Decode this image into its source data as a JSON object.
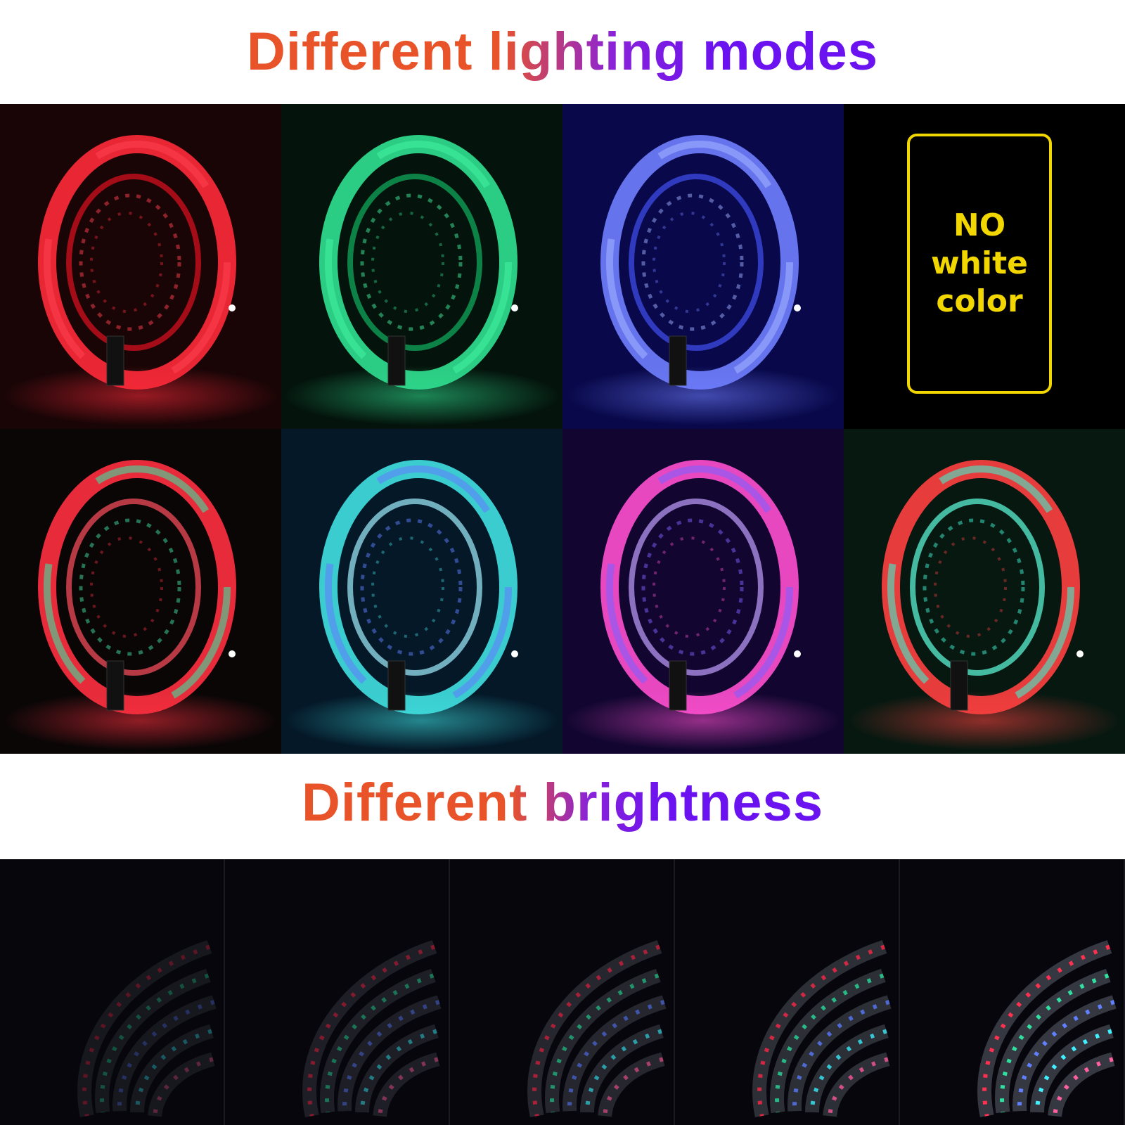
{
  "headings": {
    "modes": "Different lighting modes",
    "brightness": "Different brightness"
  },
  "gradient_colors": [
    "#e8532a",
    "#6a12f0"
  ],
  "modes_grid": [
    {
      "name": "red",
      "bg": "#1a0506",
      "colors": [
        "#ff2a3a",
        "#ff4050",
        "#e01020"
      ]
    },
    {
      "name": "green",
      "bg": "#04140c",
      "colors": [
        "#30e090",
        "#40f0a0",
        "#10b060"
      ]
    },
    {
      "name": "blue",
      "bg": "#08084a",
      "colors": [
        "#7080ff",
        "#a0b0ff",
        "#4050f0"
      ]
    },
    {
      "name": "no-white",
      "bg": "#000000",
      "colors": []
    },
    {
      "name": "red-green",
      "bg": "#0a0606",
      "colors": [
        "#ff3040",
        "#40e0a0",
        "#ff5060"
      ]
    },
    {
      "name": "cyan-blue",
      "bg": "#041828",
      "colors": [
        "#40e0e0",
        "#6080ff",
        "#a0f0ff"
      ]
    },
    {
      "name": "pink-purple",
      "bg": "#120630",
      "colors": [
        "#ff50d0",
        "#8060ff",
        "#c0a0ff"
      ]
    },
    {
      "name": "red-cyan",
      "bg": "#061810",
      "colors": [
        "#ff4040",
        "#40f0d0",
        "#60ffe0"
      ]
    }
  ],
  "no_white_badge": {
    "lines": [
      "NO",
      "white",
      "color"
    ],
    "color": "#f2d600"
  },
  "brightness_levels": [
    0.35,
    0.5,
    0.65,
    0.82,
    1.0
  ]
}
